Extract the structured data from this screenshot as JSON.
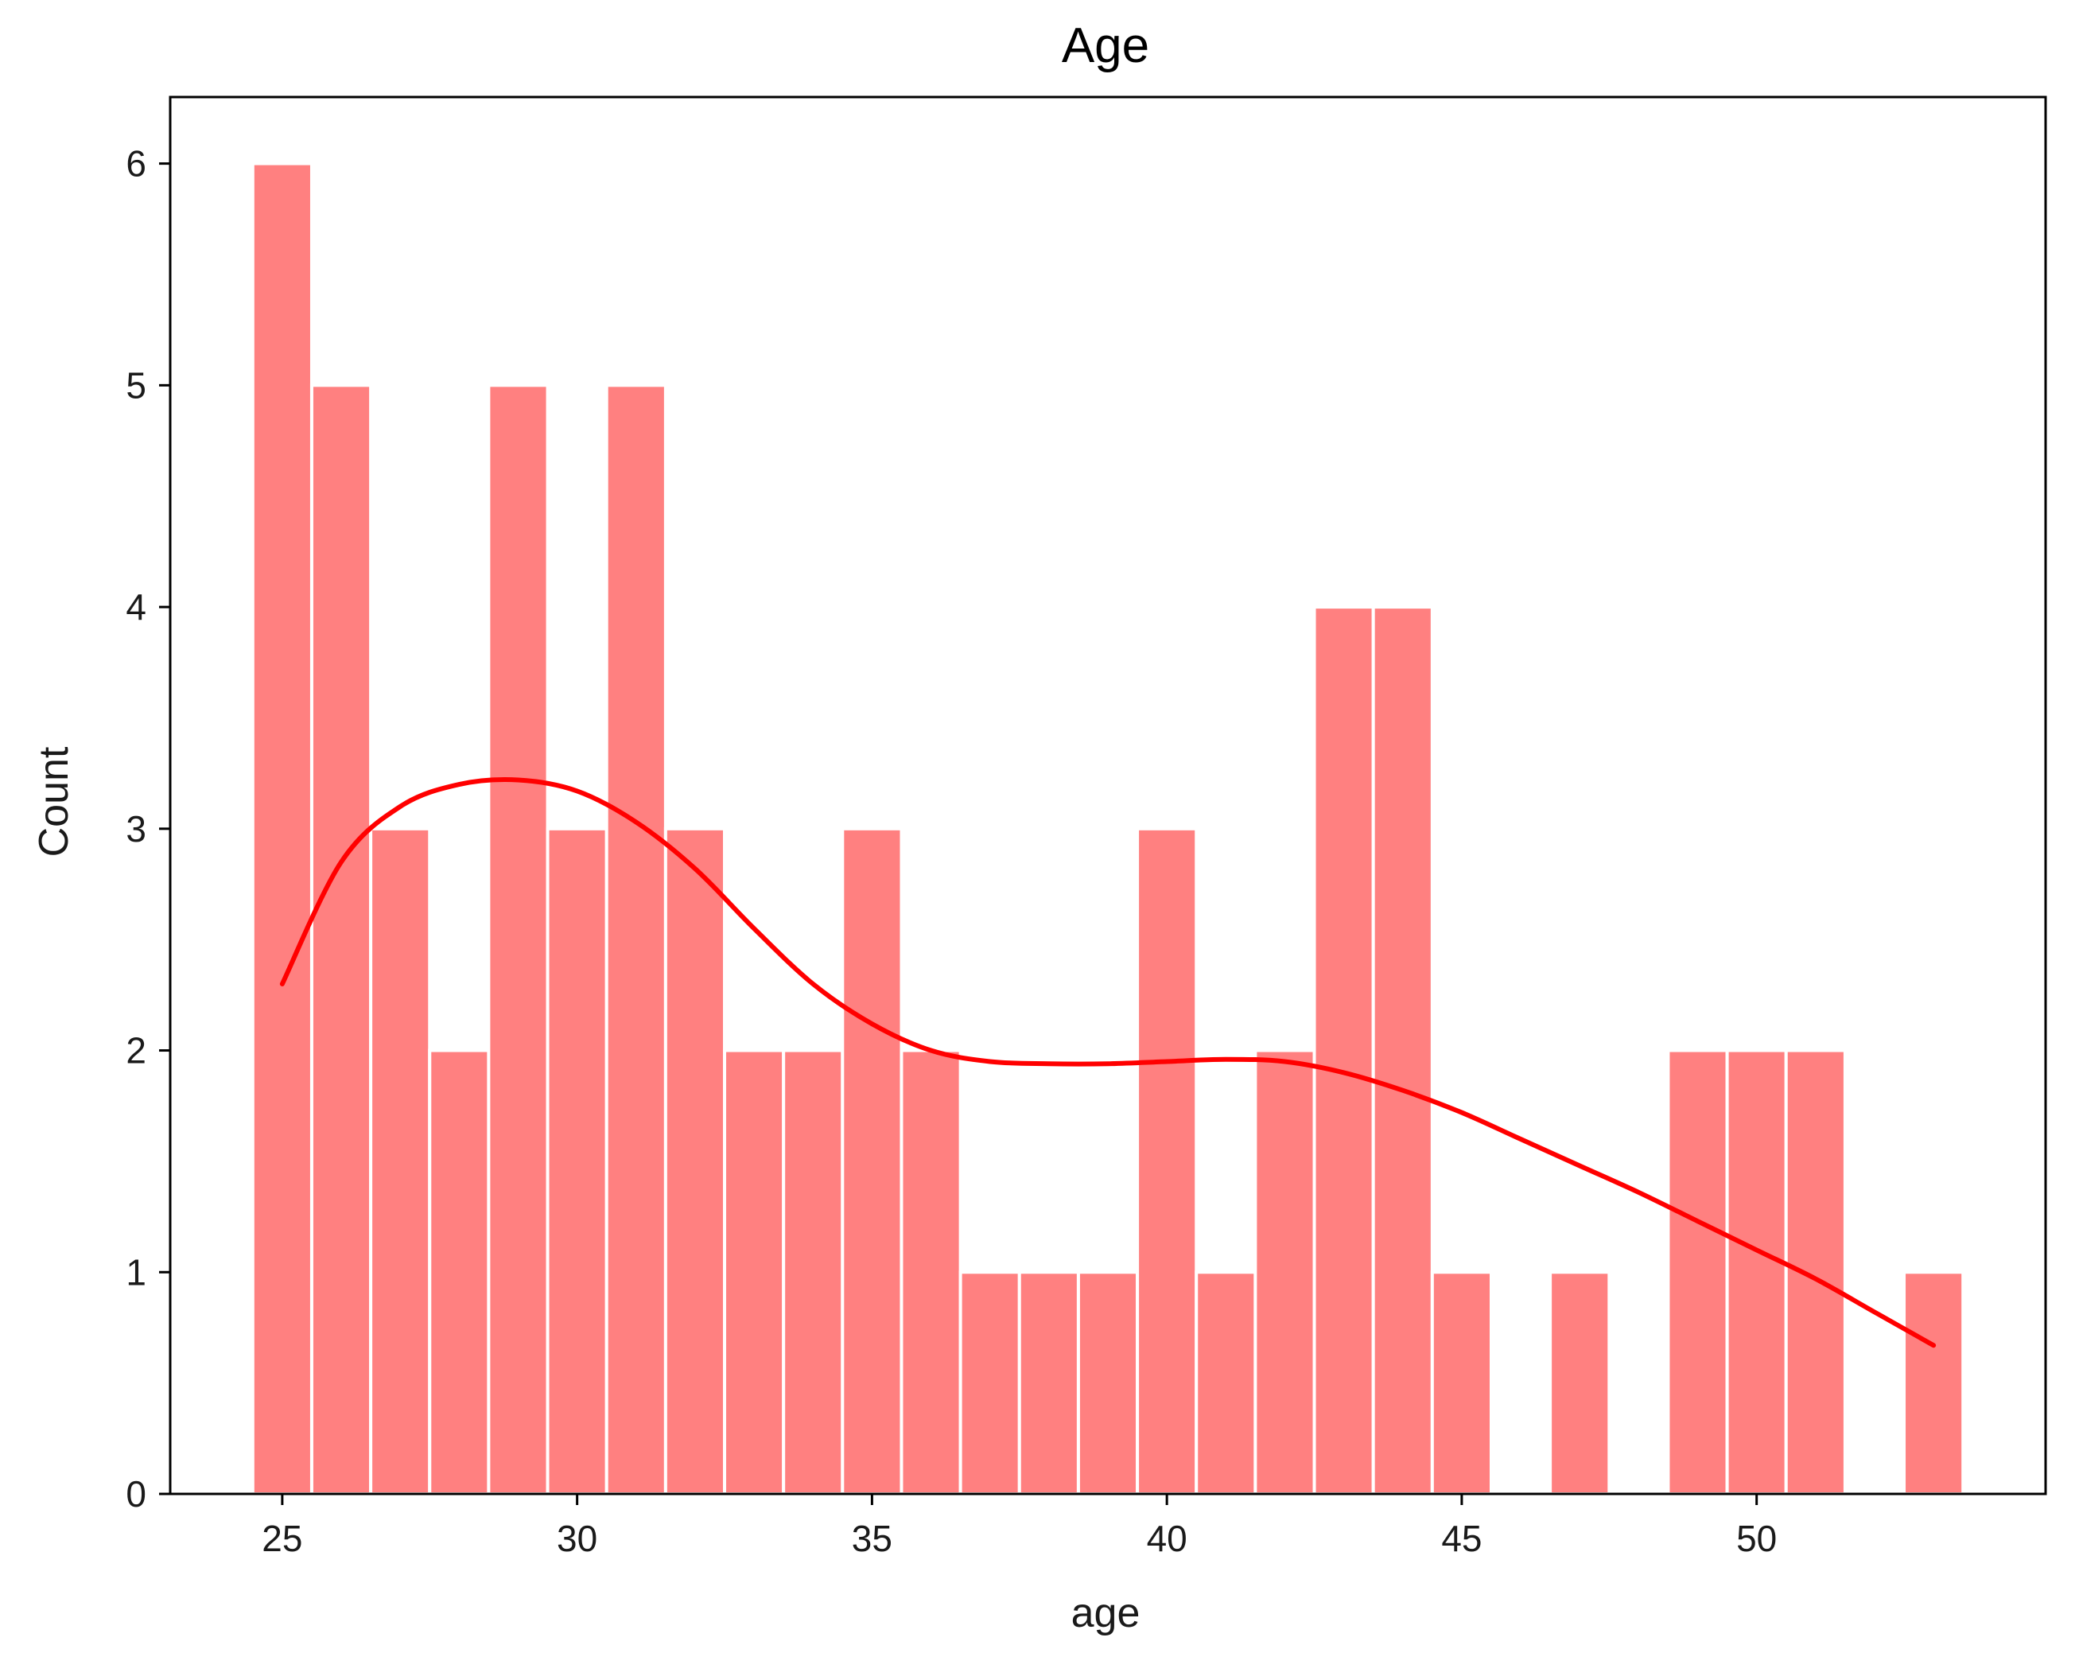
{
  "chart_data": {
    "type": "bar",
    "title": "Age",
    "xlabel": "age",
    "ylabel": "Count",
    "xlim": [
      23.1,
      54.9
    ],
    "ylim": [
      0,
      6.3
    ],
    "xticks": [
      25,
      30,
      35,
      40,
      45,
      50
    ],
    "yticks": [
      0,
      1,
      2,
      3,
      4,
      5,
      6
    ],
    "bin_width": 1,
    "bins": [
      {
        "x": 25,
        "count": 6
      },
      {
        "x": 26,
        "count": 5
      },
      {
        "x": 27,
        "count": 3
      },
      {
        "x": 28,
        "count": 2
      },
      {
        "x": 29,
        "count": 5
      },
      {
        "x": 30,
        "count": 3
      },
      {
        "x": 31,
        "count": 5
      },
      {
        "x": 32,
        "count": 3
      },
      {
        "x": 33,
        "count": 2
      },
      {
        "x": 34,
        "count": 2
      },
      {
        "x": 35,
        "count": 3
      },
      {
        "x": 36,
        "count": 2
      },
      {
        "x": 37,
        "count": 1
      },
      {
        "x": 38,
        "count": 1
      },
      {
        "x": 39,
        "count": 1
      },
      {
        "x": 40,
        "count": 3
      },
      {
        "x": 41,
        "count": 1
      },
      {
        "x": 42,
        "count": 2
      },
      {
        "x": 43,
        "count": 4
      },
      {
        "x": 44,
        "count": 4
      },
      {
        "x": 45,
        "count": 1
      },
      {
        "x": 46,
        "count": 0
      },
      {
        "x": 47,
        "count": 1
      },
      {
        "x": 48,
        "count": 0
      },
      {
        "x": 49,
        "count": 2
      },
      {
        "x": 50,
        "count": 2
      },
      {
        "x": 51,
        "count": 2
      },
      {
        "x": 52,
        "count": 0
      },
      {
        "x": 53,
        "count": 1
      }
    ],
    "kde": [
      [
        25,
        2.3
      ],
      [
        26,
        2.85
      ],
      [
        27,
        3.1
      ],
      [
        28,
        3.2
      ],
      [
        29,
        3.22
      ],
      [
        30,
        3.17
      ],
      [
        31,
        3.03
      ],
      [
        32,
        2.82
      ],
      [
        33,
        2.55
      ],
      [
        34,
        2.3
      ],
      [
        35,
        2.12
      ],
      [
        36,
        2.0
      ],
      [
        37,
        1.95
      ],
      [
        38,
        1.94
      ],
      [
        39,
        1.94
      ],
      [
        40,
        1.95
      ],
      [
        41,
        1.96
      ],
      [
        42,
        1.95
      ],
      [
        43,
        1.9
      ],
      [
        44,
        1.82
      ],
      [
        45,
        1.72
      ],
      [
        46,
        1.6
      ],
      [
        47,
        1.48
      ],
      [
        48,
        1.36
      ],
      [
        49,
        1.23
      ],
      [
        50,
        1.1
      ],
      [
        51,
        0.97
      ],
      [
        52,
        0.82
      ],
      [
        53,
        0.67
      ]
    ],
    "bar_color": "#ff8080",
    "bar_edge_color": "#ffffff",
    "kde_color": "#ff0000",
    "grid": false,
    "legend": "none"
  }
}
